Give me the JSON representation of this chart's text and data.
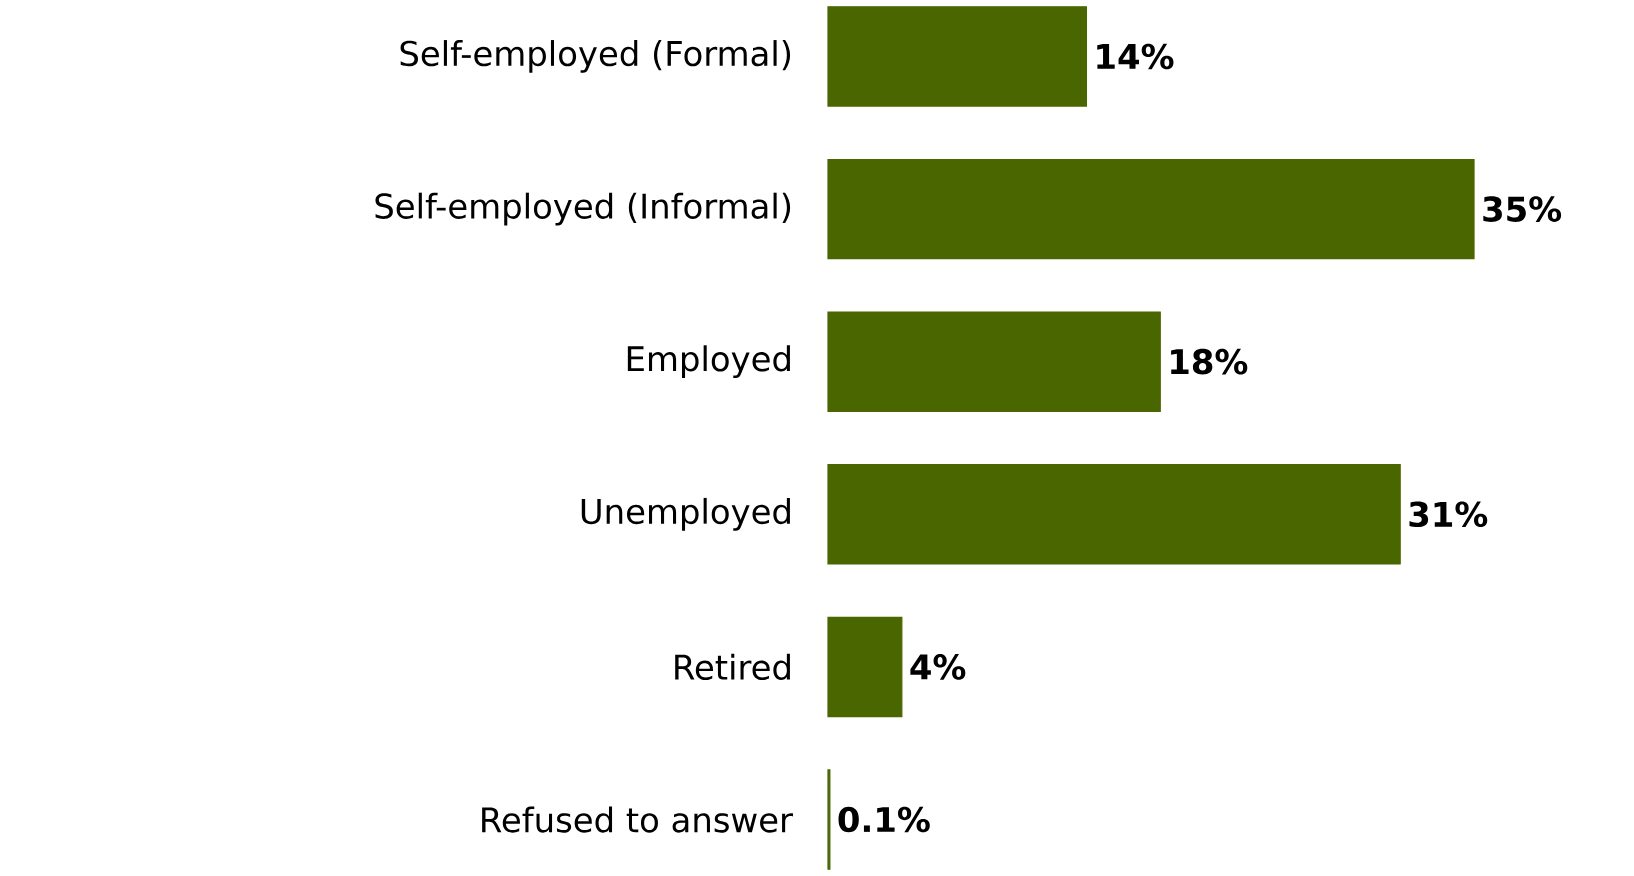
{
  "chart_data": {
    "type": "bar",
    "orientation": "horizontal",
    "categories": [
      "Self-employed (Formal)",
      "Self-employed (Informal)",
      "Employed",
      "Unemployed",
      "Retired",
      "Refused to answer"
    ],
    "values": [
      14,
      35,
      18,
      31,
      4,
      0.1
    ],
    "value_labels": [
      "14%",
      "35%",
      "18%",
      "31%",
      "4%",
      "0.1%"
    ],
    "color": "#4a6600"
  }
}
